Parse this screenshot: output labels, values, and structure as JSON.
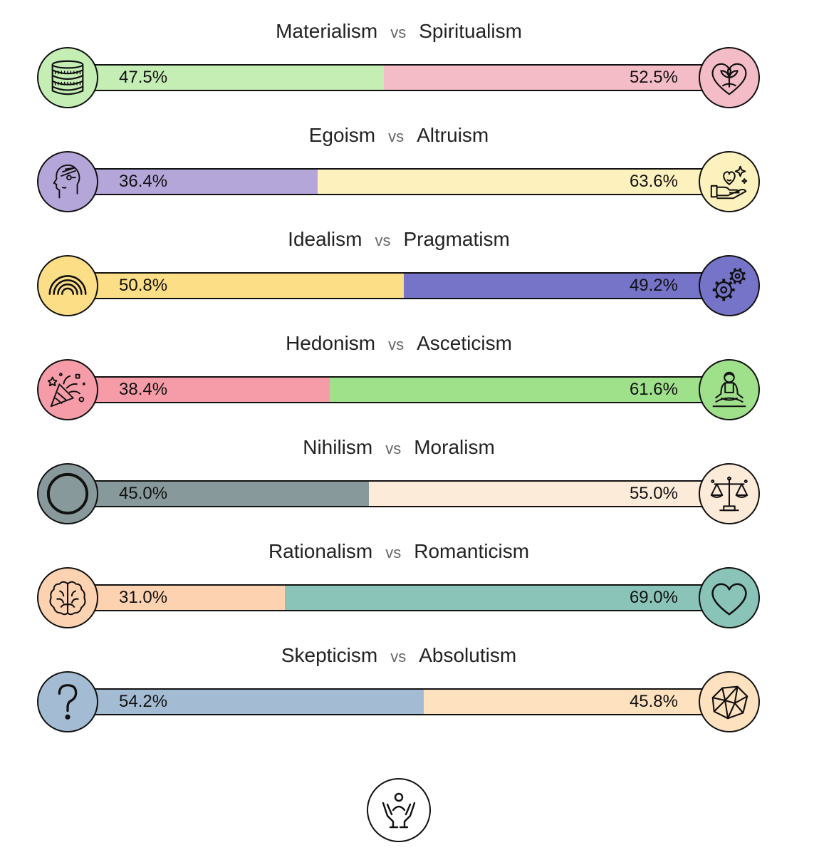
{
  "axes": [
    {
      "left": "Materialism",
      "vs": "vs",
      "right": "Spiritualism",
      "left_pct_label": "47.5%",
      "right_pct_label": "52.5%",
      "left_value": 47.5,
      "right_value": 52.5,
      "left_color": "#c5eeb4",
      "right_color": "#f4bcc7",
      "left_icon": "coins-icon",
      "right_icon": "heart-plant-icon"
    },
    {
      "left": "Egoism",
      "vs": "vs",
      "right": "Altruism",
      "left_pct_label": "36.4%",
      "right_pct_label": "63.6%",
      "left_value": 36.4,
      "right_value": 63.6,
      "left_color": "#b5a6da",
      "right_color": "#fdf2bd",
      "left_icon": "head-profile-icon",
      "right_icon": "giving-heart-hand-icon"
    },
    {
      "left": "Idealism",
      "vs": "vs",
      "right": "Pragmatism",
      "left_pct_label": "50.8%",
      "right_pct_label": "49.2%",
      "left_value": 50.8,
      "right_value": 49.2,
      "left_color": "#fcde86",
      "right_color": "#7574c9",
      "left_icon": "rainbow-icon",
      "right_icon": "gears-icon"
    },
    {
      "left": "Hedonism",
      "vs": "vs",
      "right": "Asceticism",
      "left_pct_label": "38.4%",
      "right_pct_label": "61.6%",
      "left_value": 38.4,
      "right_value": 61.6,
      "left_color": "#f59ca8",
      "right_color": "#9fe08b",
      "left_icon": "party-popper-icon",
      "right_icon": "meditation-icon"
    },
    {
      "left": "Nihilism",
      "vs": "vs",
      "right": "Moralism",
      "left_pct_label": "45.0%",
      "right_pct_label": "55.0%",
      "left_value": 45.0,
      "right_value": 55.0,
      "left_color": "#88999b",
      "right_color": "#fdebd9",
      "left_icon": "empty-circle-icon",
      "right_icon": "scales-icon"
    },
    {
      "left": "Rationalism",
      "vs": "vs",
      "right": "Romanticism",
      "left_pct_label": "31.0%",
      "right_pct_label": "69.0%",
      "left_value": 31.0,
      "right_value": 69.0,
      "left_color": "#fdd2b1",
      "right_color": "#8ac4b8",
      "left_icon": "brain-icon",
      "right_icon": "heart-icon"
    },
    {
      "left": "Skepticism",
      "vs": "vs",
      "right": "Absolutism",
      "left_pct_label": "54.2%",
      "right_pct_label": "45.8%",
      "left_value": 54.2,
      "right_value": 45.8,
      "left_color": "#a3bcd3",
      "right_color": "#fee1bf",
      "left_icon": "question-mark-icon",
      "right_icon": "crystal-icon"
    }
  ],
  "footer": {
    "icon": "hands-person-icon"
  }
}
